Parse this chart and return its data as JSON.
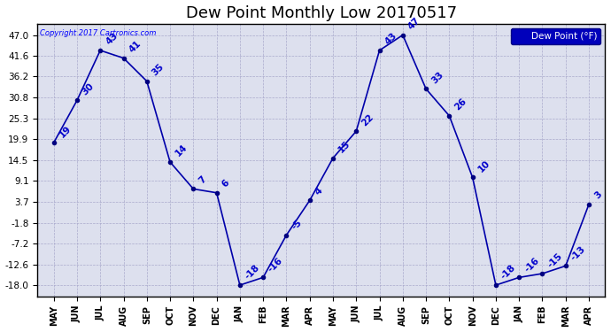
{
  "title": "Dew Point Monthly Low 20170517",
  "copyright": "Copyright 2017 Cartronics.com",
  "legend_label": "Dew Point (°F)",
  "x_labels": [
    "MAY",
    "JUN",
    "JUL",
    "AUG",
    "SEP",
    "OCT",
    "NOV",
    "DEC",
    "JAN",
    "FEB",
    "MAR",
    "APR",
    "MAY",
    "JUN",
    "JUL",
    "AUG",
    "SEP",
    "OCT",
    "NOV",
    "DEC",
    "JAN",
    "FEB",
    "MAR",
    "APR"
  ],
  "y_values": [
    19,
    30,
    43,
    41,
    35,
    14,
    7,
    6,
    -18,
    -16,
    -5,
    4,
    15,
    22,
    43,
    47,
    33,
    26,
    10,
    -18,
    -16,
    -15,
    -13,
    3
  ],
  "yticks": [
    47.0,
    41.6,
    36.2,
    30.8,
    25.3,
    19.9,
    14.5,
    9.1,
    3.7,
    -1.8,
    -7.2,
    -12.6,
    -18.0
  ],
  "ylim": [
    -21,
    50
  ],
  "line_color": "#0000AA",
  "marker_color": "#000080",
  "label_color": "#0000CC",
  "bg_color": "#ffffff",
  "plot_bg_color": "#dde0ee",
  "grid_color": "#aaaacc",
  "title_fontsize": 13,
  "label_fontsize": 7.5
}
